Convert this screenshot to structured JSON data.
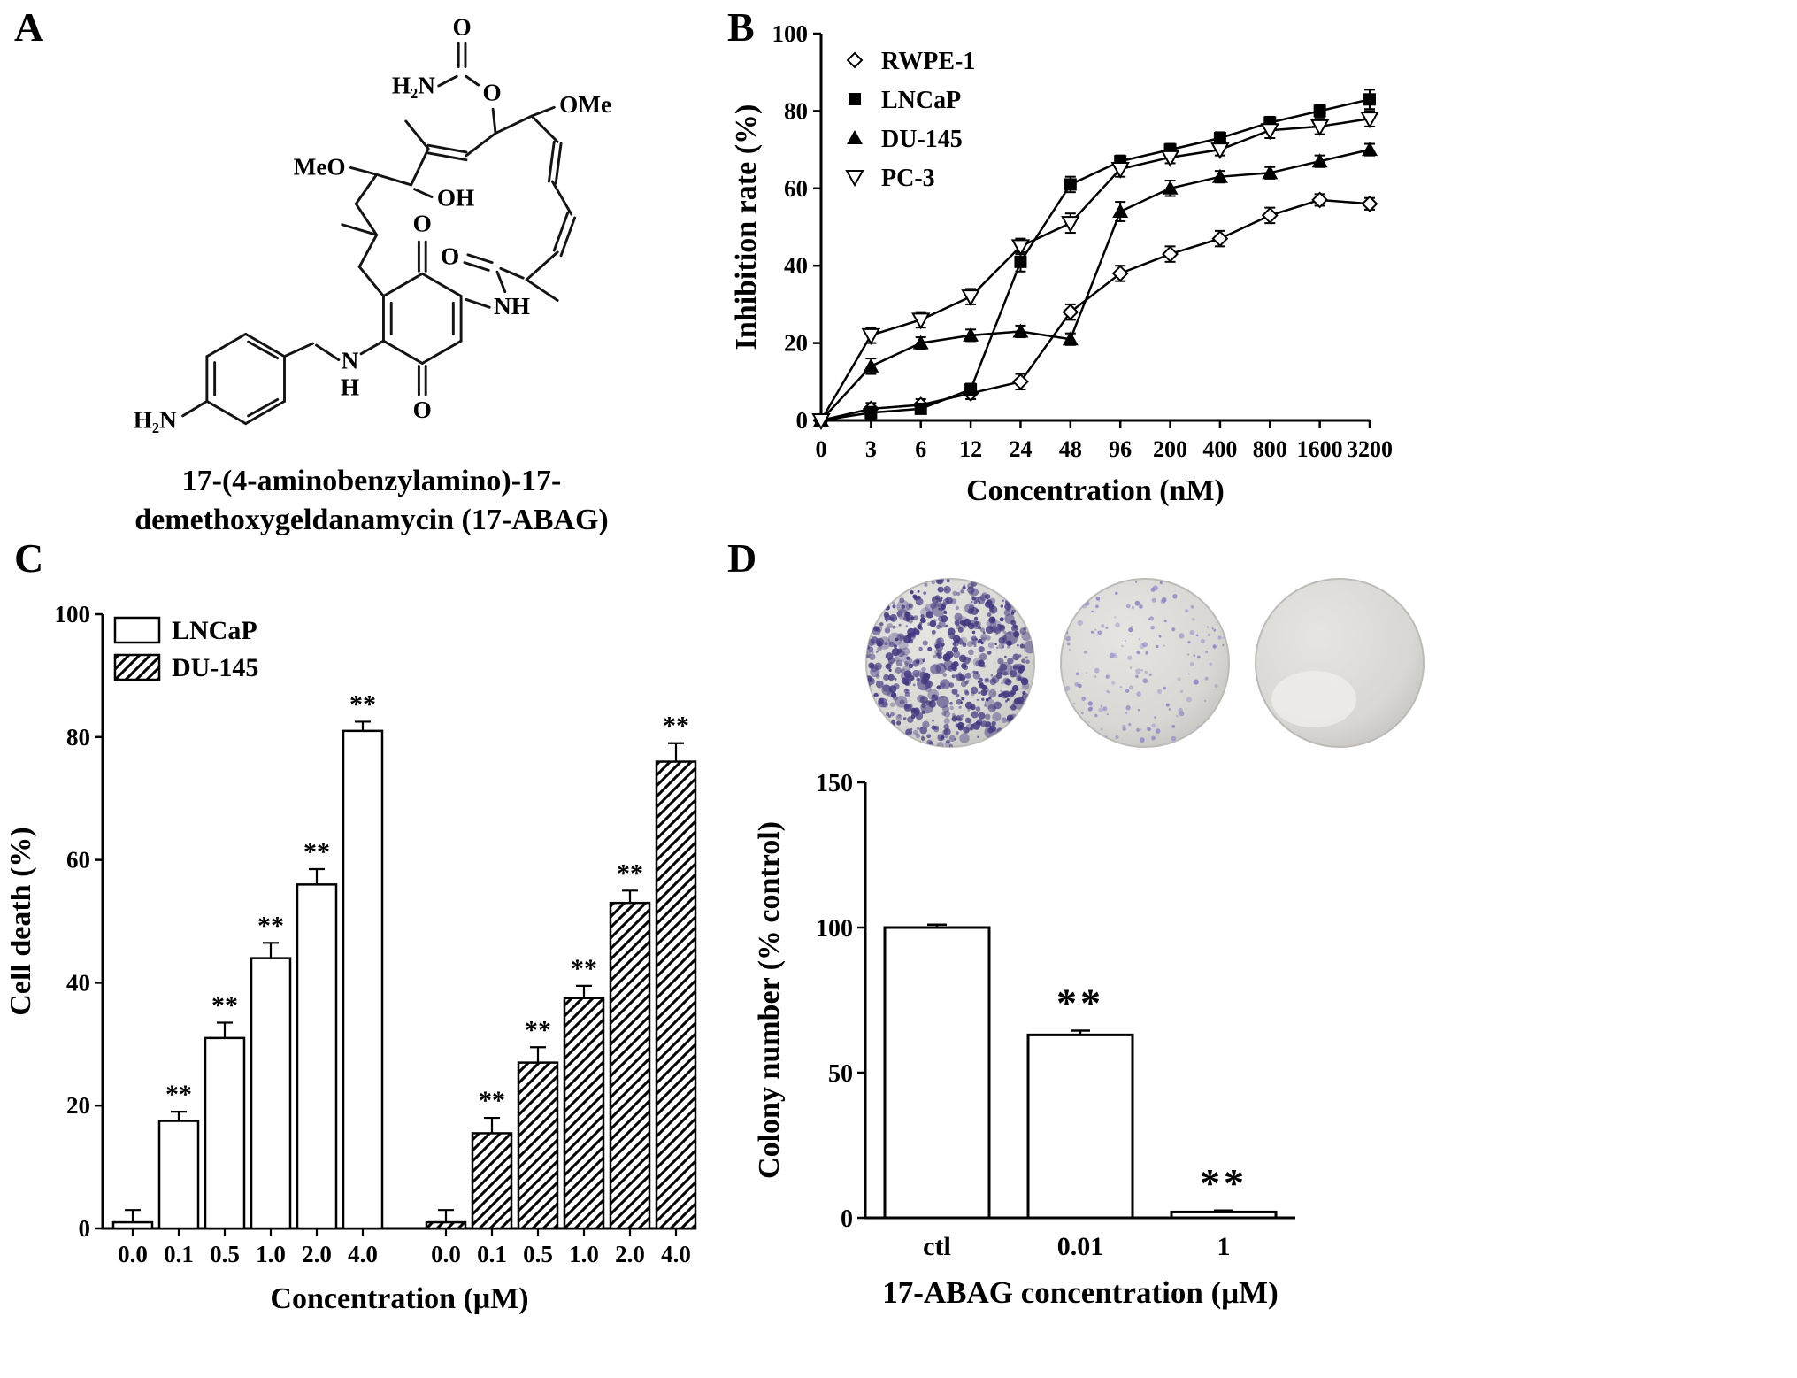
{
  "figure": {
    "panel_labels": {
      "a": "A",
      "b": "B",
      "c": "C",
      "d": "D"
    }
  },
  "panelA": {
    "caption_line1": "17-(4-aminobenzylamino)-17-",
    "caption_line2": "demethoxygeldanamycin (17-ABAG)",
    "atom_labels": {
      "carbamate_nh2": "H₂N",
      "carbamate_o_double": "O",
      "ester_o": "O",
      "ome": "OMe",
      "meo": "MeO",
      "oh": "OH",
      "amide_o": "O",
      "amide_nh": "NH",
      "quinone_o_top": "O",
      "quinone_o_bottom": "O",
      "aniline_n": "N",
      "aniline_h": "H",
      "aniline_nh2": "H₂N"
    }
  },
  "panelD": {
    "dish_base_color": "#d9d7d4",
    "dish_edge_color": "#c2c0bd",
    "dish_highlight": "#efeeea",
    "dishes": [
      {
        "label": "ctl",
        "colony_count": 520,
        "dot_color": "#42387f"
      },
      {
        "label": "0.01",
        "colony_count": 150,
        "dot_color": "#8f88c6"
      },
      {
        "label": "1",
        "colony_count": 0,
        "dot_color": "#8f88c6"
      }
    ]
  },
  "chart_data": [
    {
      "id": "inhibition_rate",
      "type": "line",
      "title": "",
      "xlabel": "Concentration (nM)",
      "ylabel": "Inhibition rate (%)",
      "categories": [
        "0",
        "3",
        "6",
        "12",
        "24",
        "48",
        "96",
        "200",
        "400",
        "800",
        "1600",
        "3200"
      ],
      "ylim": [
        0,
        100
      ],
      "yticks": [
        0,
        20,
        40,
        60,
        80,
        100
      ],
      "legend_position": "top-left",
      "grid": false,
      "series": [
        {
          "name": "RWPE-1",
          "marker": "open-diamond",
          "values": [
            0,
            3,
            4,
            7,
            10,
            28,
            38,
            43,
            47,
            53,
            57,
            56
          ],
          "errors": [
            0.5,
            1.5,
            1.5,
            1.5,
            2,
            2,
            2,
            2,
            2,
            2,
            1.5,
            1.5
          ]
        },
        {
          "name": "LNCaP",
          "marker": "filled-square",
          "values": [
            0,
            2,
            3,
            8,
            41,
            61,
            67,
            70,
            73,
            77,
            80,
            83
          ],
          "errors": [
            0.5,
            1.5,
            1,
            1.5,
            2.5,
            2,
            1.5,
            1.5,
            1.5,
            1.5,
            1.5,
            2.5
          ]
        },
        {
          "name": "DU-145",
          "marker": "filled-triangle",
          "values": [
            0,
            14,
            20,
            22,
            23,
            21,
            54,
            60,
            63,
            64,
            67,
            70
          ],
          "errors": [
            0.5,
            2,
            1.5,
            1.5,
            1.5,
            1.5,
            2.5,
            2,
            1.5,
            1.5,
            1.5,
            1.5
          ]
        },
        {
          "name": "PC-3",
          "marker": "open-triangle-down",
          "values": [
            0,
            22,
            26,
            32,
            45,
            51,
            65,
            68,
            70,
            75,
            76,
            78
          ],
          "errors": [
            0.5,
            2,
            2,
            2,
            2,
            2.5,
            2,
            1.5,
            1.5,
            2,
            2,
            2
          ]
        }
      ]
    },
    {
      "id": "cell_death",
      "type": "bar",
      "xlabel": "Concentration (μM)",
      "ylabel": "Cell death (%)",
      "categories": [
        "0.0",
        "0.1",
        "0.5",
        "1.0",
        "2.0",
        "4.0"
      ],
      "ylim": [
        0,
        100
      ],
      "yticks": [
        0,
        20,
        40,
        60,
        80,
        100
      ],
      "legend_position": "top-left",
      "series": [
        {
          "name": "LNCaP",
          "fill": "open",
          "values": [
            1,
            17.5,
            31,
            44,
            56,
            81
          ],
          "errors": [
            2,
            1.5,
            2.5,
            2.5,
            2.5,
            1.5
          ],
          "sig": [
            "",
            "**",
            "**",
            "**",
            "**",
            "**"
          ]
        },
        {
          "name": "DU-145",
          "fill": "hatched",
          "values": [
            1,
            15.5,
            27,
            37.5,
            53,
            76
          ],
          "errors": [
            2,
            2.5,
            2.5,
            2,
            2,
            3
          ],
          "sig": [
            "",
            "**",
            "**",
            "**",
            "**",
            "**"
          ]
        }
      ]
    },
    {
      "id": "colony_number",
      "type": "bar",
      "xlabel": "17-ABAG concentration (μM)",
      "ylabel": "Colony number (% control)",
      "categories": [
        "ctl",
        "0.01",
        "1"
      ],
      "ylim": [
        0,
        150
      ],
      "yticks": [
        0,
        50,
        100,
        150
      ],
      "values": [
        100,
        63,
        2
      ],
      "errors": [
        1,
        1.5,
        0.5
      ],
      "sig": [
        "",
        "**",
        "**"
      ]
    }
  ]
}
